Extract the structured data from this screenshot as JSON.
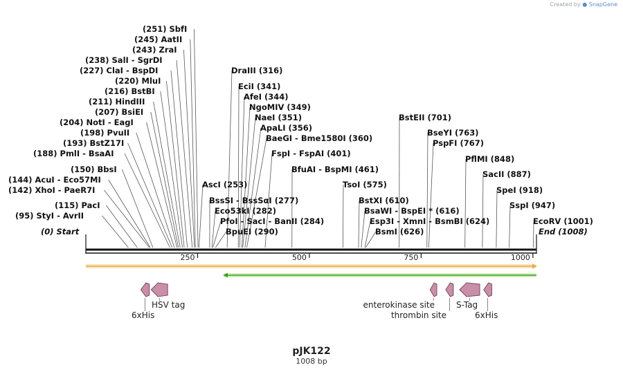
{
  "watermark": {
    "prefix": "Created by",
    "brand": "SnapGene"
  },
  "map": {
    "name": "pJK122",
    "length_label": "1008 bp",
    "length": 1008,
    "ticks": [
      {
        "pos": 250,
        "label": "250"
      },
      {
        "pos": 500,
        "label": "500"
      },
      {
        "pos": 750,
        "label": "750"
      },
      {
        "pos": 1000,
        "label": "1000"
      }
    ]
  },
  "sites": [
    {
      "label": "(0)  Start",
      "pos": 0,
      "italic": true
    },
    {
      "label": "(95)  StyI  - AvrII",
      "pos": 95
    },
    {
      "label": "(115)  PacI",
      "pos": 115
    },
    {
      "label": "(142)  XhoI  - PaeR7I",
      "pos": 142
    },
    {
      "label": "(144)  AcuI  - Eco57MI",
      "pos": 144
    },
    {
      "label": "(150)  BbsI",
      "pos": 150
    },
    {
      "label": "(188)  PmlI  - BsaAI",
      "pos": 188
    },
    {
      "label": "(193)  BstZ17I",
      "pos": 193
    },
    {
      "label": "(198)  PvuII",
      "pos": 198
    },
    {
      "label": "(204)  NotI  - EagI",
      "pos": 204
    },
    {
      "label": "(207)  BsiEI",
      "pos": 207
    },
    {
      "label": "(211)  HindIII",
      "pos": 211
    },
    {
      "label": "(216)  BstBI",
      "pos": 216
    },
    {
      "label": "(220)  MluI",
      "pos": 220
    },
    {
      "label": "(227)  ClaI  - BspDI",
      "pos": 227
    },
    {
      "label": "(238)  SalI  - SgrDI",
      "pos": 238
    },
    {
      "label": "(243)  ZraI",
      "pos": 243
    },
    {
      "label": "(245)  AatII",
      "pos": 245
    },
    {
      "label": "(251)  SbfI",
      "pos": 251
    },
    {
      "label": "BpuEI  (290)",
      "pos": 290
    },
    {
      "label": "PfoI  - SacI  - BanII  (284)",
      "pos": 284
    },
    {
      "label": "Eco53kI  (282)",
      "pos": 282
    },
    {
      "label": "BssSI  - BssSαI  (277)",
      "pos": 277
    },
    {
      "label": "AscI  (253)",
      "pos": 253
    },
    {
      "label": "FspI  - FspAI  (401)",
      "pos": 401
    },
    {
      "label": "BaeGI  - Bme1580I  (360)",
      "pos": 360
    },
    {
      "label": "ApaLI  (356)",
      "pos": 356
    },
    {
      "label": "NaeI  (351)",
      "pos": 351
    },
    {
      "label": "NgoMIV  (349)",
      "pos": 349
    },
    {
      "label": "AfeI  (344)",
      "pos": 344
    },
    {
      "label": "EciI  (341)",
      "pos": 341
    },
    {
      "label": "DraIII  (316)",
      "pos": 316
    },
    {
      "label": "BfuAI  - BspMI  (461)",
      "pos": 461
    },
    {
      "label": "TsoI  (575)",
      "pos": 575
    },
    {
      "label": "BsmI  (626)",
      "pos": 626
    },
    {
      "label": "Esp3I  - XmnI  - BsmBI  (624)",
      "pos": 624
    },
    {
      "label": "BsaWI  - BspEI *  (616)",
      "pos": 616
    },
    {
      "label": "BstXI  (610)",
      "pos": 610
    },
    {
      "label": "BstEII  (701)",
      "pos": 701
    },
    {
      "label": "PspFI  (767)",
      "pos": 767
    },
    {
      "label": "BseYI  (763)",
      "pos": 763
    },
    {
      "label": "PflMI  (848)",
      "pos": 848
    },
    {
      "label": "SacII  (887)",
      "pos": 887
    },
    {
      "label": "SpeI  (918)",
      "pos": 918
    },
    {
      "label": "SspI  (947)",
      "pos": 947
    },
    {
      "label": "EcoRV  (1001)",
      "pos": 1001
    },
    {
      "label": "End  (1008)",
      "pos": 1008,
      "italic": true
    }
  ],
  "features": [
    {
      "name": "6xHis",
      "start": 123,
      "end": 142,
      "direction": "reverse",
      "type": "small"
    },
    {
      "name": "HSV tag",
      "start": 146,
      "end": 183,
      "direction": "reverse",
      "type": "arrow"
    },
    {
      "name": "enterokinase site",
      "start": 770,
      "end": 785,
      "direction": "reverse",
      "type": "small"
    },
    {
      "name": "thrombin site",
      "start": 805,
      "end": 822,
      "direction": "reverse",
      "type": "small"
    },
    {
      "name": "S-Tag",
      "start": 836,
      "end": 881,
      "direction": "reverse",
      "type": "arrow"
    },
    {
      "name": "6xHis",
      "start": 890,
      "end": 908,
      "direction": "reverse",
      "type": "small"
    }
  ],
  "orfs": [
    {
      "start": 0,
      "end": 1008,
      "direction": "forward",
      "color": "#e8a84a"
    },
    {
      "start": 308,
      "end": 1008,
      "direction": "reverse",
      "color": "#3a9a2a"
    }
  ]
}
